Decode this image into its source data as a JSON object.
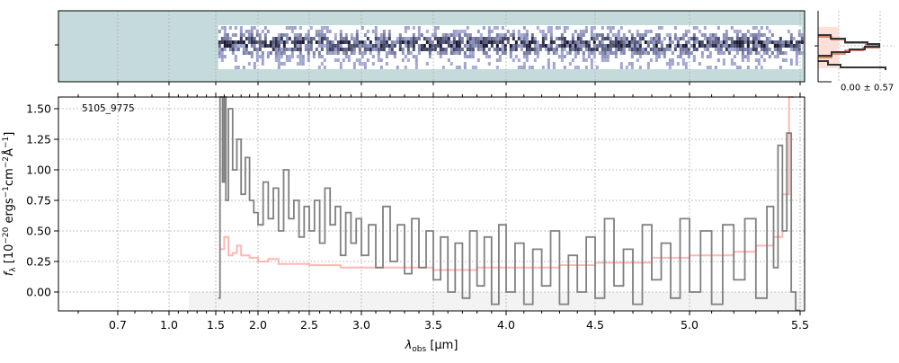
{
  "chart_data": {
    "type": "line",
    "object_label": "5105_9775",
    "xlabel": "λobs [μm]",
    "xlabel_parts": {
      "sym": "λ",
      "sub": "obs",
      "unit": " [μm]"
    },
    "ylabel": "fλ [10^-20 ergs^-1cm^-2Å^-1]",
    "ylabel_parts": {
      "f": "f",
      "sub": "λ",
      "a": " [10",
      "e1": "−20",
      "b": " ergs",
      "e2": "−1",
      "c": "cm",
      "e3": "−2",
      "d": "Å",
      "e4": "−1",
      "e": "]"
    },
    "ylim": [
      -0.16,
      1.61
    ],
    "xlim": [
      0.55,
      5.52
    ],
    "x_ticks": [
      {
        "value": 0.7,
        "label": "0.7"
      },
      {
        "value": 1.0,
        "label": "1.0"
      },
      {
        "value": 1.5,
        "label": "1.5"
      },
      {
        "value": 2.0,
        "label": "2.0"
      },
      {
        "value": 2.5,
        "label": "2.5"
      },
      {
        "value": 3.0,
        "label": "3.0"
      },
      {
        "value": 3.5,
        "label": "3.5"
      },
      {
        "value": 4.0,
        "label": "4.0"
      },
      {
        "value": 4.5,
        "label": "4.5"
      },
      {
        "value": 5.0,
        "label": "5.0"
      },
      {
        "value": 5.5,
        "label": "5.5"
      }
    ],
    "y_ticks": [
      {
        "value": 0.0,
        "label": "0.00"
      },
      {
        "value": 0.25,
        "label": "0.25"
      },
      {
        "value": 0.5,
        "label": "0.50"
      },
      {
        "value": 0.75,
        "label": "0.75"
      },
      {
        "value": 1.0,
        "label": "1.00"
      },
      {
        "value": 1.25,
        "label": "1.25"
      },
      {
        "value": 1.5,
        "label": "1.50"
      }
    ],
    "grid": true,
    "series": [
      {
        "name": "data",
        "color": "#808080",
        "style": "steps",
        "x": [
          1.53,
          1.55,
          1.58,
          1.6,
          1.62,
          1.65,
          1.7,
          1.75,
          1.8,
          1.85,
          1.9,
          1.95,
          2.0,
          2.05,
          2.1,
          2.15,
          2.2,
          2.25,
          2.3,
          2.35,
          2.4,
          2.45,
          2.5,
          2.55,
          2.6,
          2.65,
          2.7,
          2.75,
          2.8,
          2.85,
          2.9,
          2.95,
          3.0,
          3.05,
          3.1,
          3.15,
          3.2,
          3.25,
          3.3,
          3.35,
          3.4,
          3.45,
          3.5,
          3.55,
          3.6,
          3.65,
          3.7,
          3.75,
          3.8,
          3.85,
          3.9,
          3.95,
          4.0,
          4.05,
          4.1,
          4.15,
          4.2,
          4.25,
          4.3,
          4.35,
          4.4,
          4.45,
          4.5,
          4.55,
          4.6,
          4.65,
          4.7,
          4.75,
          4.8,
          4.85,
          4.9,
          4.95,
          5.0,
          5.05,
          5.1,
          5.15,
          5.2,
          5.25,
          5.3,
          5.35,
          5.38,
          5.4,
          5.42,
          5.44,
          5.46,
          5.48
        ],
        "y": [
          -0.05,
          1.6,
          0.9,
          1.6,
          0.75,
          1.5,
          1.0,
          1.25,
          0.8,
          1.1,
          0.75,
          0.65,
          0.55,
          0.9,
          0.6,
          0.85,
          0.5,
          1.0,
          0.6,
          0.75,
          0.45,
          0.7,
          0.5,
          0.75,
          0.4,
          0.85,
          0.55,
          0.7,
          0.3,
          0.65,
          0.4,
          0.6,
          0.3,
          0.55,
          0.2,
          0.7,
          0.25,
          0.55,
          0.15,
          0.6,
          0.2,
          0.5,
          0.1,
          0.45,
          0.0,
          0.4,
          -0.05,
          0.5,
          0.05,
          0.45,
          -0.1,
          0.55,
          0.0,
          0.4,
          -0.1,
          0.35,
          0.05,
          0.5,
          -0.1,
          0.3,
          0.0,
          0.45,
          -0.05,
          0.6,
          0.05,
          0.35,
          -0.1,
          0.55,
          0.1,
          0.4,
          -0.05,
          0.6,
          0.0,
          0.5,
          -0.1,
          0.55,
          0.1,
          0.6,
          -0.05,
          0.7,
          0.2,
          1.2,
          0.5,
          1.3,
          0.0,
          -0.15
        ]
      },
      {
        "name": "model",
        "color": "#ff9f9a",
        "style": "steps",
        "x": [
          1.55,
          1.6,
          1.65,
          1.7,
          1.75,
          1.8,
          1.9,
          2.0,
          2.1,
          2.2,
          2.5,
          2.8,
          3.0,
          3.3,
          3.5,
          3.8,
          4.0,
          4.3,
          4.5,
          4.8,
          5.0,
          5.2,
          5.3,
          5.38,
          5.42,
          5.45
        ],
        "y": [
          0.35,
          0.45,
          0.3,
          0.32,
          0.38,
          0.3,
          0.28,
          0.25,
          0.27,
          0.23,
          0.22,
          0.2,
          0.2,
          0.2,
          0.18,
          0.2,
          0.2,
          0.22,
          0.24,
          0.28,
          0.3,
          0.33,
          0.38,
          0.45,
          0.8,
          1.6
        ]
      }
    ],
    "spectrum_2d": {
      "background": "#c5dada",
      "start_um": 1.53,
      "end_um": 5.5
    },
    "histogram_panel": {
      "label": "0.00 ± 0.57",
      "colors": [
        "#333333",
        "#e06040",
        "#fdd9cf"
      ]
    }
  }
}
